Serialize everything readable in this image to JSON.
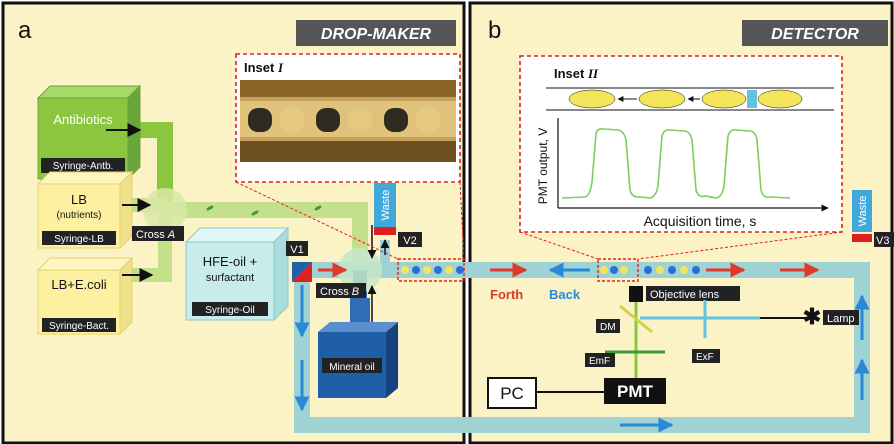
{
  "panel_a": {
    "letter": "a",
    "title": "DROP-MAKER",
    "syringes": [
      {
        "main": "Antibiotics",
        "sub": "",
        "tag": "Syringe-Antb."
      },
      {
        "main": "LB",
        "sub": "(nutrients)",
        "tag": "Syringe-LB"
      },
      {
        "main": "LB+E.coli",
        "sub": "",
        "tag": "Syringe-Bact."
      }
    ],
    "oil": {
      "line1": "HFE-oil +",
      "line2": "surfactant",
      "tag": "Syringe-Oil"
    },
    "cross_a": "Cross",
    "cross_a_italic": "A",
    "cross_b": "Cross",
    "cross_b_italic": "B",
    "mineral_oil": "Mineral oil",
    "valve1": "V1",
    "valve2": "V2",
    "waste": "Waste",
    "inset": {
      "label": "Inset",
      "numeral": "I"
    }
  },
  "panel_b": {
    "letter": "b",
    "title": "DETECTOR",
    "inset": {
      "label": "Inset",
      "numeral": "II",
      "ylabel": "PMT output, V",
      "xlabel": "Acquisition time, s"
    },
    "forth": "Forth",
    "back": "Back",
    "objective": "Objective lens",
    "dm": "DM",
    "lamp": "Lamp",
    "emf": "EmF",
    "exf": "ExF",
    "pmt": "PMT",
    "pc": "PC",
    "valve3": "V3",
    "waste": "Waste"
  },
  "colors": {
    "panel_bg": "#fbf3c6",
    "tube": "#9fd3d3",
    "antibiotics": "#8cc63f",
    "syringe": "#fdf1a1",
    "oil_box": "#c8ecec",
    "mineral": "#1f5fa8",
    "valve_red": "#e02020",
    "waste_blue": "#41a8dc",
    "droplet_yellow": "#f3e45a",
    "droplet_blue": "#2a6fd6",
    "arrow_red": "#e0392b",
    "arrow_blue": "#2a89d6",
    "inset_border": "#e02020",
    "signal": "#7ccf5a"
  }
}
